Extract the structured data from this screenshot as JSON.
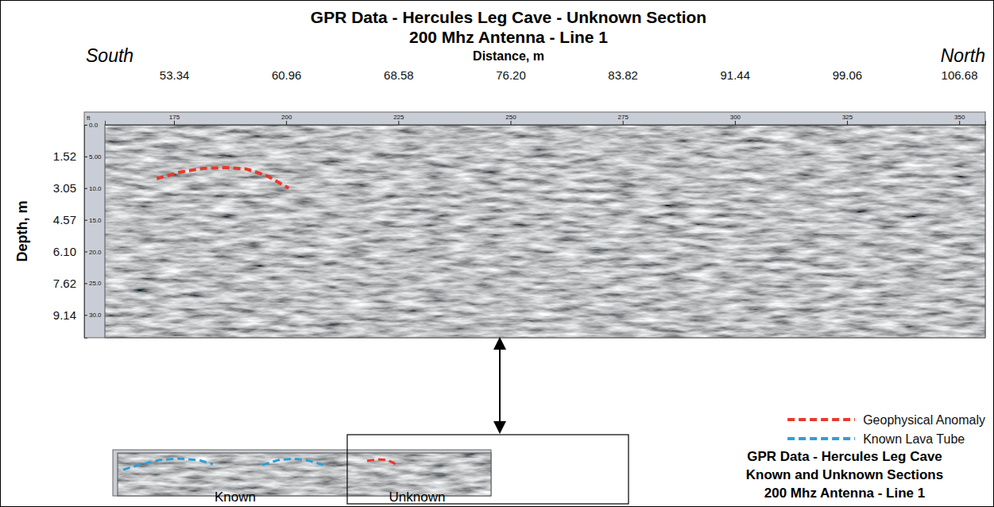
{
  "chart_data": [
    {
      "type": "line",
      "title": "GPR Data - Hercules Leg Cave - Unknown Section",
      "subtitle": "200 Mhz Antenna - Line 1",
      "x_label": "Distance, m",
      "y_label": "Depth, m",
      "annotations": [
        "South",
        "North"
      ],
      "ruler_unit": "ft",
      "xlim": [
        48.64,
        108.46
      ],
      "xticks": [
        53.34,
        60.96,
        68.58,
        {
          "value": 76.2,
          "label": "76.20"
        },
        83.82,
        91.44,
        99.06,
        106.68
      ],
      "x2lim": [
        159.6,
        355.8
      ],
      "x2ticks": [
        175,
        200,
        225,
        250,
        275,
        300,
        325,
        350
      ],
      "ylim": [
        0,
        10.24
      ],
      "yticks": [
        1.52,
        3.05,
        4.57,
        {
          "value": 6.1,
          "label": "6.10"
        },
        7.62,
        9.14
      ],
      "y2lim": [
        0,
        33.6
      ],
      "y2ticks": [
        {
          "value": 0,
          "label": "0.0"
        },
        {
          "value": 5,
          "label": "5.00"
        },
        {
          "value": 10,
          "label": "10.0"
        },
        {
          "value": 15,
          "label": "15.0"
        },
        {
          "value": 20,
          "label": "20.0"
        },
        {
          "value": 25,
          "label": "25.0"
        },
        {
          "value": 30,
          "label": "30.0"
        }
      ],
      "series": [
        {
          "color": "#e8392c",
          "line_style": "dashed",
          "x": [
            52.16,
            53.67,
            55.29,
            56.91,
            58.26,
            59.61,
            61.13
          ],
          "values": [
            2.59,
            2.29,
            2.1,
            2.06,
            2.13,
            2.44,
            3.05
          ]
        }
      ]
    },
    {
      "type": "line",
      "title": "GPR Data - Hercules Leg Cave",
      "subtitle": "Known and Unknown Sections",
      "caption": "200 Mhz Antenna - Line 1",
      "annotations": [
        "Known",
        "Unknown"
      ],
      "xlim": [
        0,
        157
      ],
      "ylim": [
        0,
        10.24
      ],
      "tick_labels": false,
      "legend": "right",
      "series": [
        {
          "name": "Geophysical Anomaly",
          "color": "#e8392c",
          "line_style": "dashed",
          "x": [
            104.9,
            109.2,
            113.6,
            117.6
          ],
          "values": [
            1.9,
            1.52,
            1.71,
            2.85
          ]
        },
        {
          "name": "Known Lava Tube",
          "color": "#2e9fd8",
          "line_style": "dashed",
          "x": [
            2.3,
            9.0,
            17.4,
            25.7,
            34.1,
            40.1,
            null,
            60.8,
            67.5,
            74.1,
            80.8,
            87.5
          ],
          "values": [
            4.0,
            2.85,
            1.71,
            1.33,
            1.71,
            2.66,
            null,
            2.85,
            1.71,
            1.33,
            1.9,
            3.04
          ]
        }
      ]
    }
  ]
}
